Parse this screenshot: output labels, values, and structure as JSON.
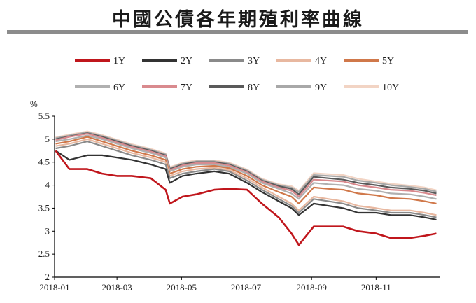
{
  "title": "中國公債各年期殖利率曲線",
  "chart_data": {
    "type": "line",
    "title": "中國公債各年期殖利率曲線",
    "ylabel": "%",
    "xlabel": "",
    "ylim": [
      2,
      5.5
    ],
    "yticks": [
      2,
      2.5,
      3,
      3.5,
      4,
      4.5,
      5,
      5.5
    ],
    "ytick_labels": [
      "2",
      "2.5",
      "3",
      "3.5",
      "4",
      "4.5",
      "5",
      "5.5"
    ],
    "xtick_labels": [
      "2018-01",
      "2018-03",
      "2018-05",
      "2018-07",
      "2018-09",
      "2018-11"
    ],
    "x": [
      "2018-01-02",
      "2018-01-15",
      "2018-02-01",
      "2018-02-15",
      "2018-03-01",
      "2018-03-15",
      "2018-04-02",
      "2018-04-16",
      "2018-04-20",
      "2018-05-02",
      "2018-05-15",
      "2018-06-01",
      "2018-06-15",
      "2018-07-02",
      "2018-07-16",
      "2018-08-01",
      "2018-08-13",
      "2018-08-20",
      "2018-09-03",
      "2018-09-17",
      "2018-10-01",
      "2018-10-15",
      "2018-11-01",
      "2018-11-15",
      "2018-12-03",
      "2018-12-17",
      "2018-12-28"
    ],
    "grid": false,
    "legend_position": "top",
    "series": [
      {
        "name": "1Y",
        "color": "#c0161c",
        "values": [
          4.75,
          4.35,
          4.35,
          4.25,
          4.2,
          4.2,
          4.15,
          3.9,
          3.6,
          3.75,
          3.8,
          3.9,
          3.92,
          3.9,
          3.6,
          3.3,
          2.95,
          2.7,
          3.1,
          3.1,
          3.1,
          3.0,
          2.95,
          2.85,
          2.85,
          2.9,
          2.95
        ]
      },
      {
        "name": "2Y",
        "color": "#333333",
        "values": [
          4.75,
          4.55,
          4.65,
          4.65,
          4.6,
          4.55,
          4.45,
          4.35,
          4.05,
          4.2,
          4.25,
          4.3,
          4.25,
          4.05,
          3.85,
          3.65,
          3.5,
          3.35,
          3.6,
          3.55,
          3.5,
          3.4,
          3.4,
          3.35,
          3.35,
          3.3,
          3.25
        ]
      },
      {
        "name": "3Y",
        "color": "#8a8a8a",
        "values": [
          4.8,
          4.85,
          4.95,
          4.85,
          4.75,
          4.65,
          4.55,
          4.45,
          4.15,
          4.25,
          4.3,
          4.35,
          4.3,
          4.1,
          3.9,
          3.7,
          3.55,
          3.4,
          3.7,
          3.65,
          3.6,
          3.5,
          3.45,
          3.4,
          3.4,
          3.35,
          3.3
        ]
      },
      {
        "name": "4Y",
        "color": "#e8b8a0",
        "values": [
          4.85,
          4.9,
          5.0,
          4.9,
          4.8,
          4.7,
          4.6,
          4.5,
          4.2,
          4.3,
          4.35,
          4.38,
          4.33,
          4.15,
          3.95,
          3.75,
          3.6,
          3.45,
          3.75,
          3.7,
          3.65,
          3.55,
          3.5,
          3.45,
          3.45,
          3.4,
          3.35
        ]
      },
      {
        "name": "5Y",
        "color": "#d0784a",
        "values": [
          4.9,
          4.95,
          5.05,
          4.95,
          4.85,
          4.75,
          4.65,
          4.55,
          4.25,
          4.35,
          4.4,
          4.42,
          4.37,
          4.2,
          4.0,
          3.85,
          3.75,
          3.6,
          3.95,
          3.92,
          3.9,
          3.82,
          3.78,
          3.72,
          3.7,
          3.65,
          3.6
        ]
      },
      {
        "name": "6Y",
        "color": "#b0b0b0",
        "values": [
          4.95,
          5.0,
          5.08,
          5.0,
          4.9,
          4.8,
          4.7,
          4.6,
          4.3,
          4.4,
          4.45,
          4.45,
          4.4,
          4.25,
          4.05,
          3.92,
          3.82,
          3.7,
          4.05,
          4.02,
          4.0,
          3.92,
          3.88,
          3.82,
          3.8,
          3.75,
          3.7
        ]
      },
      {
        "name": "7Y",
        "color": "#d98a8e",
        "values": [
          4.98,
          5.05,
          5.12,
          5.03,
          4.93,
          4.83,
          4.73,
          4.63,
          4.33,
          4.43,
          4.48,
          4.48,
          4.43,
          4.28,
          4.08,
          3.95,
          3.88,
          3.75,
          4.12,
          4.1,
          4.08,
          4.0,
          3.95,
          3.9,
          3.88,
          3.83,
          3.78
        ]
      },
      {
        "name": "8Y",
        "color": "#5a5a5a",
        "values": [
          5.0,
          5.06,
          5.13,
          5.05,
          4.95,
          4.85,
          4.75,
          4.65,
          4.35,
          4.45,
          4.5,
          4.5,
          4.45,
          4.3,
          4.1,
          3.98,
          3.92,
          3.8,
          4.18,
          4.15,
          4.12,
          4.05,
          4.0,
          3.95,
          3.92,
          3.88,
          3.82
        ]
      },
      {
        "name": "9Y",
        "color": "#a8a8a8",
        "values": [
          5.02,
          5.08,
          5.15,
          5.07,
          4.97,
          4.87,
          4.77,
          4.67,
          4.37,
          4.47,
          4.52,
          4.52,
          4.47,
          4.32,
          4.12,
          4.0,
          3.95,
          3.85,
          4.22,
          4.2,
          4.18,
          4.1,
          4.05,
          4.0,
          3.96,
          3.92,
          3.86
        ]
      },
      {
        "name": "10Y",
        "color": "#f2d4c4",
        "values": [
          5.04,
          5.1,
          5.17,
          5.09,
          4.99,
          4.89,
          4.79,
          4.69,
          4.39,
          4.49,
          4.54,
          4.54,
          4.49,
          4.34,
          4.14,
          4.02,
          3.98,
          3.88,
          4.26,
          4.24,
          4.22,
          4.14,
          4.08,
          4.03,
          3.99,
          3.95,
          3.89
        ]
      }
    ]
  }
}
